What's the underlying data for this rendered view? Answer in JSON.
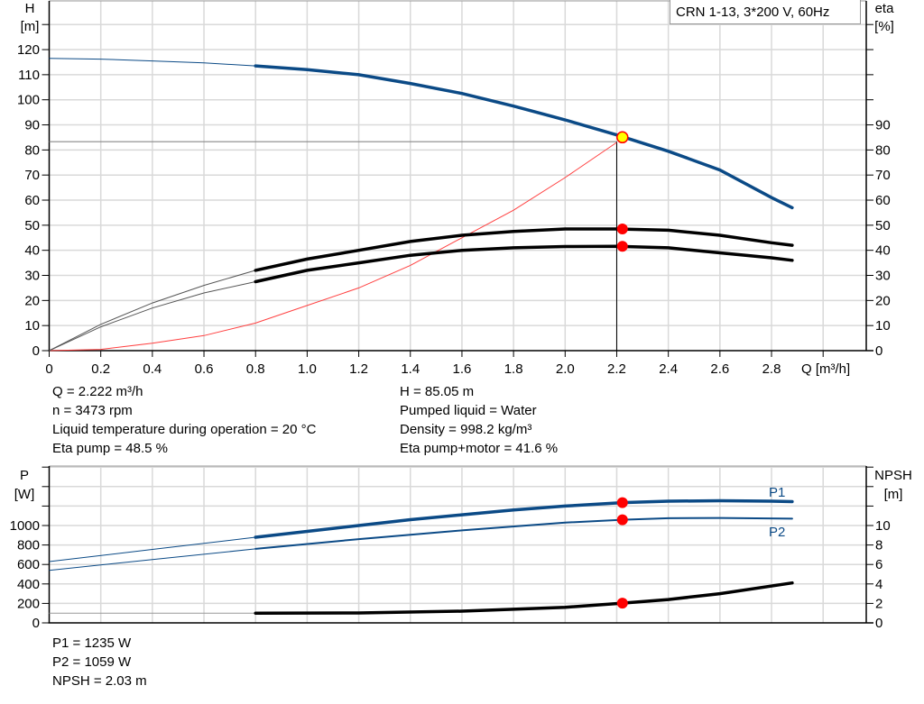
{
  "chart_data": [
    {
      "type": "line",
      "title": "CRN 1-13, 3*200 V, 60Hz",
      "xlabel": "Q [m³/h]",
      "ylabel_left": {
        "name": "H",
        "unit": "[m]"
      },
      "ylabel_right": {
        "name": "eta",
        "unit": "[%]"
      },
      "xlim": [
        0,
        3.2
      ],
      "ylim_left": [
        0,
        140
      ],
      "ylim_right": [
        0,
        140
      ],
      "x_ticks": [
        "0",
        "0.2",
        "0.4",
        "0.6",
        "0.8",
        "1.0",
        "1.2",
        "1.4",
        "1.6",
        "1.8",
        "2.0",
        "2.2",
        "2.4",
        "2.6",
        "2.8"
      ],
      "y_ticks_left": [
        "0",
        "10",
        "20",
        "30",
        "40",
        "50",
        "60",
        "70",
        "80",
        "90",
        "100",
        "110",
        "120"
      ],
      "y_ticks_right": [
        "0",
        "10",
        "20",
        "30",
        "40",
        "50",
        "60",
        "70",
        "80",
        "90"
      ],
      "grid": true,
      "legend": "top-right",
      "series": [
        {
          "key": "H",
          "axis": "left",
          "color": "#0b4a86",
          "thick_from": 0.8,
          "x": [
            0,
            0.2,
            0.4,
            0.6,
            0.8,
            1.0,
            1.2,
            1.4,
            1.6,
            1.8,
            2.0,
            2.2,
            2.4,
            2.6,
            2.8,
            2.88
          ],
          "y": [
            116.5,
            116.2,
            115.5,
            114.7,
            113.5,
            112,
            110,
            106.5,
            102.5,
            97.5,
            92,
            86,
            79.5,
            72,
            61,
            57
          ]
        },
        {
          "key": "eta_pump",
          "axis": "right",
          "color": "#000000",
          "thick_from": 0.8,
          "x": [
            0,
            0.2,
            0.4,
            0.6,
            0.8,
            1.0,
            1.2,
            1.4,
            1.6,
            1.8,
            2.0,
            2.2,
            2.4,
            2.6,
            2.8,
            2.88
          ],
          "y": [
            0,
            10.5,
            19,
            26,
            32,
            36.5,
            40,
            43.5,
            46,
            47.5,
            48.5,
            48.5,
            48,
            46,
            43,
            42
          ]
        },
        {
          "key": "eta_pump_motor",
          "axis": "right",
          "color": "#000000",
          "thick_from": 0.8,
          "x": [
            0,
            0.2,
            0.4,
            0.6,
            0.8,
            1.0,
            1.2,
            1.4,
            1.6,
            1.8,
            2.0,
            2.2,
            2.4,
            2.6,
            2.8,
            2.88
          ],
          "y": [
            0,
            9.5,
            17,
            23,
            27.5,
            32,
            35,
            38,
            40,
            41,
            41.5,
            41.6,
            41,
            39,
            37,
            36
          ]
        },
        {
          "key": "system_curve",
          "axis": "left",
          "color": "#ff4040",
          "x": [
            0,
            0.2,
            0.4,
            0.6,
            0.8,
            1.0,
            1.2,
            1.4,
            1.6,
            1.8,
            2.0,
            2.2
          ],
          "y": [
            0,
            0.5,
            3,
            6,
            11,
            18,
            25,
            34,
            45,
            56,
            69,
            83
          ]
        }
      ],
      "duty_point": {
        "q": 2.222,
        "h": 85.05,
        "eta_pump": 48.5,
        "eta_pump_motor": 41.6,
        "reference_h": 83.3,
        "reference_q": 2.2
      }
    },
    {
      "type": "line",
      "ylabel_left": {
        "name": "P",
        "unit": "[W]"
      },
      "ylabel_right": {
        "name": "NPSH",
        "unit": "[m]"
      },
      "xlim": [
        0,
        3.2
      ],
      "ylim_left": [
        0,
        1600
      ],
      "ylim_right": [
        0,
        16
      ],
      "y_ticks_left": [
        "0",
        "200",
        "400",
        "600",
        "800",
        "1000"
      ],
      "y_ticks_right": [
        "0",
        "2",
        "4",
        "6",
        "8",
        "10"
      ],
      "grid": true,
      "series": [
        {
          "name": "P1",
          "key": "P1",
          "axis": "left",
          "color": "#0b4a86",
          "thick_from": 0.8,
          "x": [
            0,
            0.4,
            0.8,
            1.0,
            1.2,
            1.4,
            1.6,
            1.8,
            2.0,
            2.222,
            2.4,
            2.6,
            2.8,
            2.88
          ],
          "y": [
            630,
            755,
            880,
            940,
            1000,
            1060,
            1110,
            1160,
            1200,
            1235,
            1250,
            1255,
            1250,
            1245
          ]
        },
        {
          "name": "P2",
          "key": "P2",
          "axis": "left",
          "color": "#0b4a86",
          "thick_from": 0.8,
          "thin_width": true,
          "x": [
            0,
            0.4,
            0.8,
            1.2,
            1.6,
            2.0,
            2.222,
            2.4,
            2.6,
            2.88
          ],
          "y": [
            540,
            650,
            760,
            860,
            950,
            1030,
            1059,
            1075,
            1078,
            1070
          ]
        },
        {
          "key": "NPSH",
          "axis": "right",
          "color": "#000000",
          "thick_from": 0.8,
          "x": [
            0,
            0.4,
            0.8,
            1.2,
            1.6,
            2.0,
            2.222,
            2.4,
            2.6,
            2.88
          ],
          "y": [
            1.0,
            1.0,
            1.0,
            1.02,
            1.2,
            1.6,
            2.03,
            2.4,
            3.0,
            4.1
          ]
        }
      ],
      "duty_point": {
        "q": 2.222,
        "P1": 1235,
        "P2": 1059,
        "NPSH": 2.03
      }
    }
  ],
  "info_top": {
    "q": "Q = 2.222 m³/h",
    "n": "n = 3473 rpm",
    "temp": "Liquid temperature during operation = 20 °C",
    "eta_pump": "Eta pump = 48.5 %",
    "h": "H = 85.05 m",
    "liquid": "Pumped liquid = Water",
    "density": "Density = 998.2 kg/m³",
    "eta_pm": "Eta pump+motor = 41.6 %"
  },
  "info_bottom": {
    "p1": "P1 = 1235 W",
    "p2": "P2 = 1059 W",
    "npsh": "NPSH = 2.03 m"
  },
  "colors": {
    "blue": "#0b4a86",
    "red_point": "#ff0000",
    "duty_fill": "#ffff00",
    "grid": "#d9d9d9"
  }
}
